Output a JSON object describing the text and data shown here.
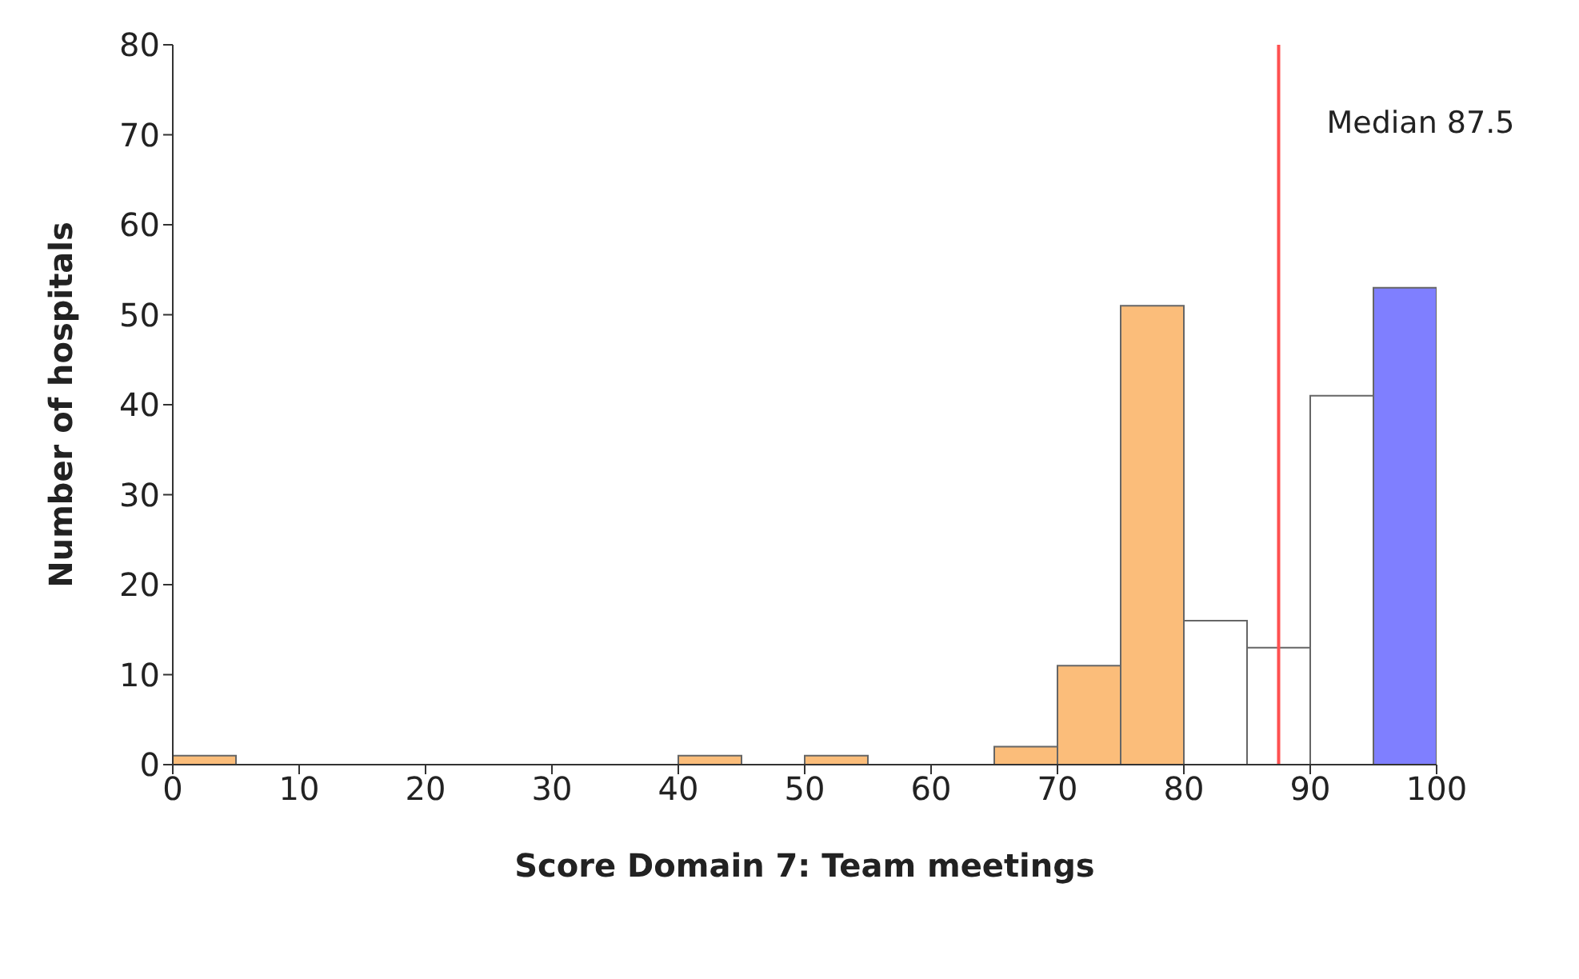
{
  "chart_data": {
    "type": "histogram",
    "xlabel": "Score Domain 7: Team meetings",
    "ylabel": "Number of hospitals",
    "bins": [
      0,
      5,
      10,
      15,
      20,
      25,
      30,
      35,
      40,
      45,
      50,
      55,
      60,
      65,
      70,
      75,
      80,
      85,
      90,
      95,
      100
    ],
    "values": [
      1,
      0,
      0,
      0,
      0,
      0,
      0,
      0,
      1,
      0,
      1,
      0,
      0,
      2,
      11,
      51,
      16,
      13,
      41,
      53
    ],
    "colors": [
      "#fbbd7a",
      "#fbbd7a",
      "#fbbd7a",
      "#fbbd7a",
      "#fbbd7a",
      "#fbbd7a",
      "#fbbd7a",
      "#fbbd7a",
      "#fbbd7a",
      "#fbbd7a",
      "#fbbd7a",
      "#fbbd7a",
      "#fbbd7a",
      "#fbbd7a",
      "#fbbd7a",
      "#fbbd7a",
      "#ffffff",
      "#ffffff",
      "#ffffff",
      "#7f7fff"
    ],
    "xlim": [
      0,
      100
    ],
    "xticks": [
      0,
      10,
      20,
      30,
      40,
      50,
      60,
      70,
      80,
      90,
      100
    ],
    "ylim": [
      0,
      80
    ],
    "yticks": [
      0,
      10,
      20,
      30,
      40,
      50,
      60,
      70,
      80
    ],
    "ref_lines": [
      {
        "axis": "x",
        "value": 87.5,
        "label": "Median 87.5",
        "color": "#ff5050"
      }
    ],
    "grid": false
  }
}
